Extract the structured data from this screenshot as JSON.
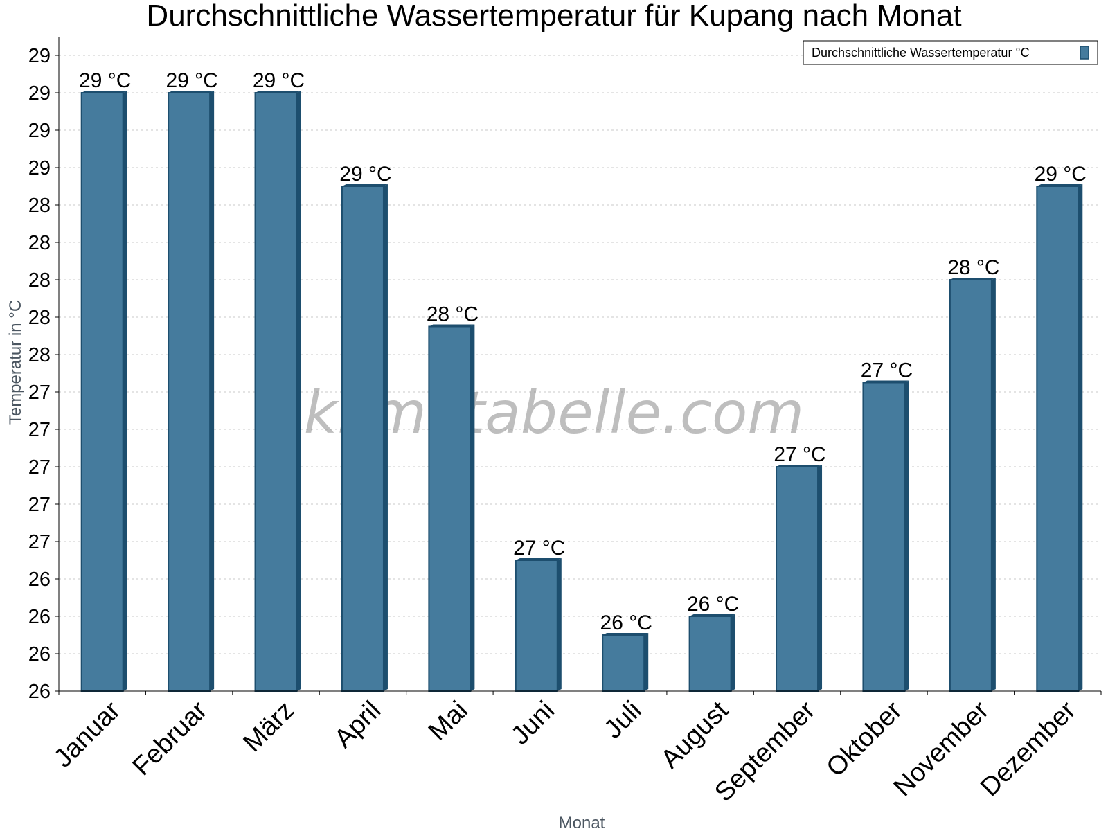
{
  "chart_data": {
    "type": "bar",
    "title": "Durchschnittliche Wassertemperatur für Kupang nach Monat",
    "xlabel": "Monat",
    "ylabel": "Temperatur in °C",
    "categories": [
      "Januar",
      "Februar",
      "März",
      "April",
      "Mai",
      "Juni",
      "Juli",
      "August",
      "September",
      "Oktober",
      "November",
      "Dezember"
    ],
    "series": [
      {
        "name": "Durchschnittliche Wassertemperatur °C",
        "values": [
          29.0,
          29.0,
          29.0,
          28.5,
          27.75,
          26.5,
          26.1,
          26.2,
          27.0,
          27.45,
          28.0,
          28.5
        ],
        "data_labels": [
          "29 °C",
          "29 °C",
          "29 °C",
          "29 °C",
          "28 °C",
          "27 °C",
          "26 °C",
          "26 °C",
          "27 °C",
          "27 °C",
          "28 °C",
          "29 °C"
        ]
      }
    ],
    "ylim": [
      25.8,
      29.3
    ],
    "ytick_values": [
      25.8,
      26.0,
      26.2,
      26.4,
      26.6,
      26.8,
      27.0,
      27.2,
      27.4,
      27.6,
      27.8,
      28.0,
      28.2,
      28.4,
      28.6,
      28.8,
      29.0,
      29.2
    ],
    "ytick_labels": [
      "26",
      "26",
      "26",
      "26",
      "27",
      "27",
      "27",
      "27",
      "27",
      "28",
      "28",
      "28",
      "28",
      "28",
      "29",
      "29",
      "29",
      "29"
    ],
    "grid": true,
    "legend_position": "top-right",
    "bar_color": "#457b9d",
    "bar_edge_color": "#1d4e6e",
    "watermark": "klimatabelle.com"
  }
}
